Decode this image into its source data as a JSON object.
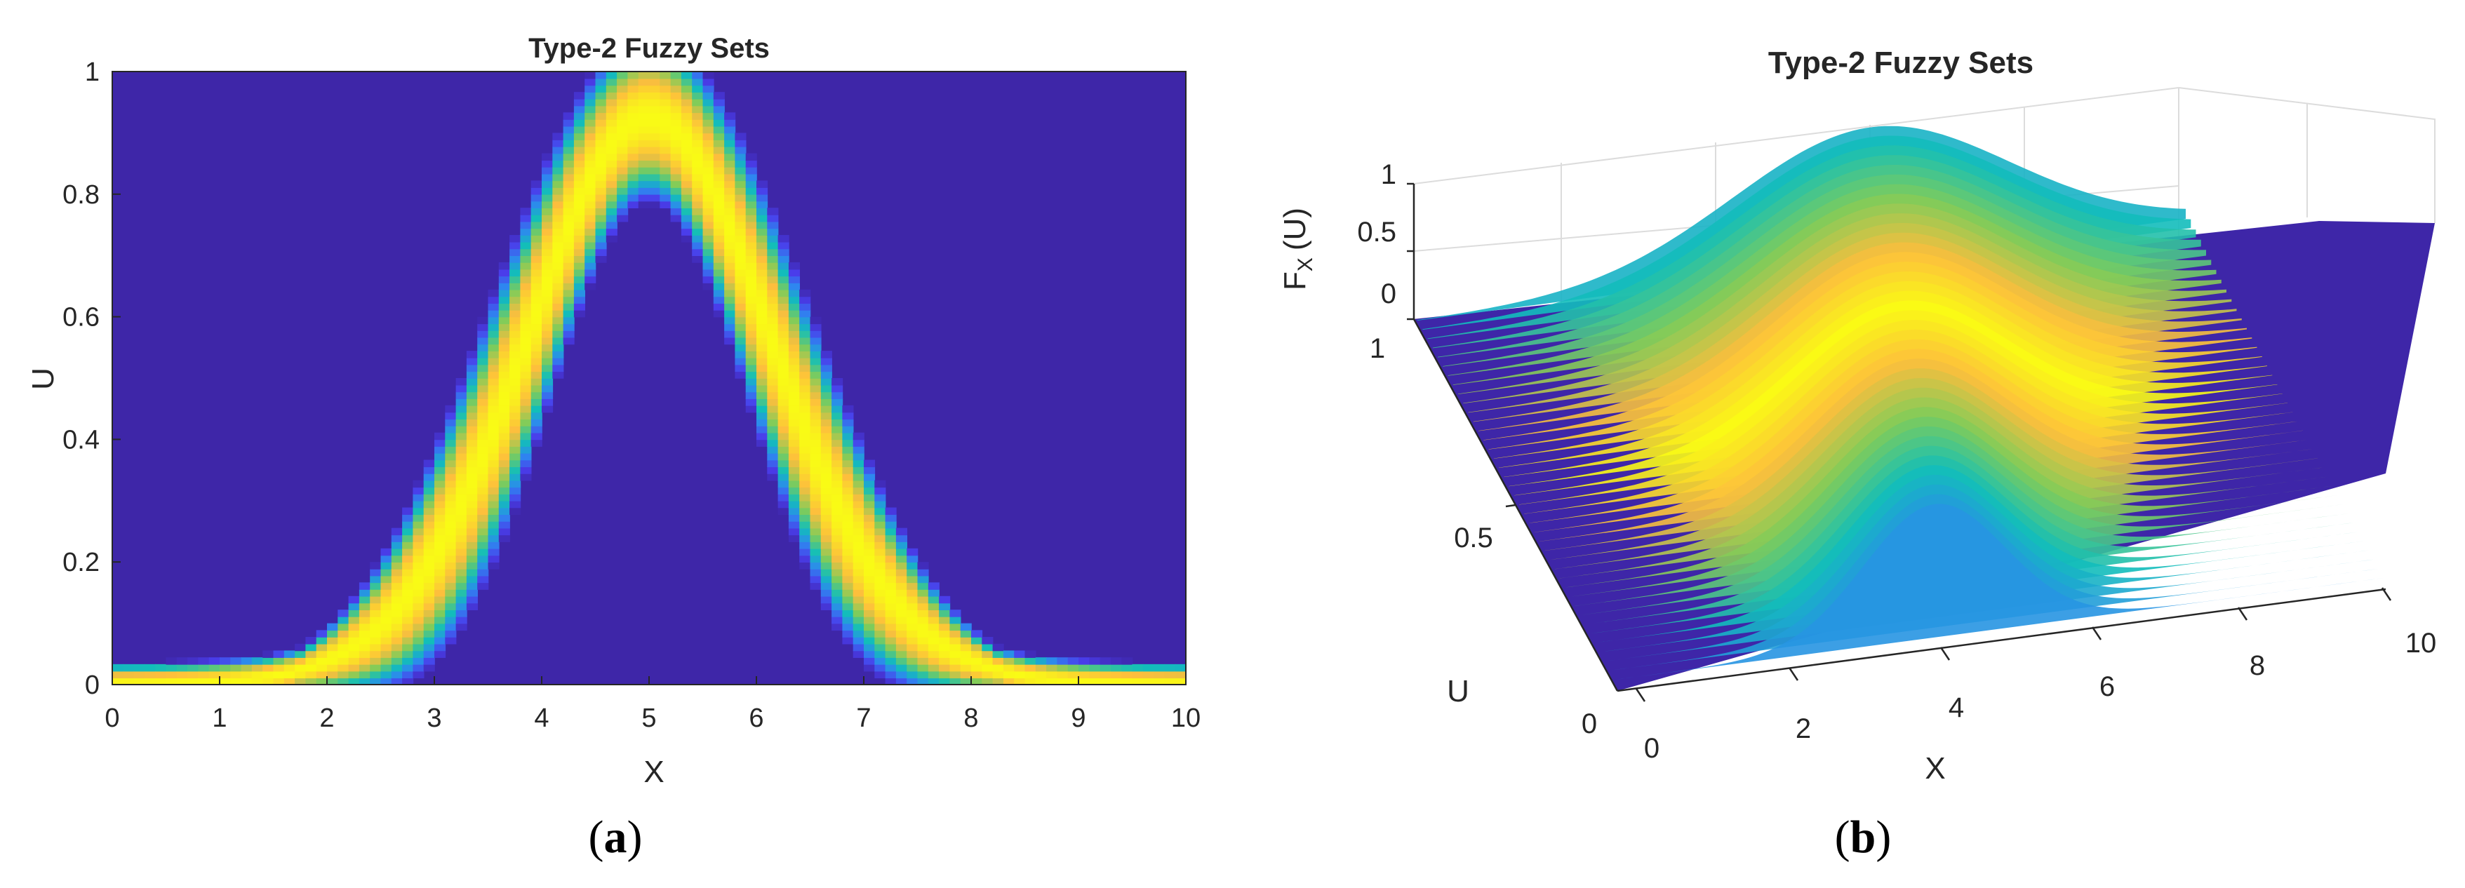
{
  "chart_data": [
    {
      "type": "heatmap",
      "panel_label": "a",
      "title": "Type-2 Fuzzy Sets",
      "xlabel": "X",
      "ylabel": "U",
      "xlim": [
        0,
        10
      ],
      "ylim": [
        0,
        1
      ],
      "xticks": [
        "0",
        "1",
        "2",
        "3",
        "4",
        "5",
        "6",
        "7",
        "8",
        "9",
        "10"
      ],
      "yticks": [
        "0",
        "0.2",
        "0.4",
        "0.6",
        "0.8",
        "1"
      ],
      "colormap": [
        "#3E26A8",
        "#4A3DEB",
        "#2E87F0",
        "#12BEB9",
        "#81CC59",
        "#FDBE3D",
        "#F9FB15"
      ],
      "secondary_membership": {
        "center": 5,
        "upper_sigma": 1.3,
        "lower_sigma": 1.0,
        "upper_height": 1.0,
        "lower_height": 0.85
      }
    },
    {
      "type": "surface",
      "panel_label": "b",
      "title": "Type-2 Fuzzy Sets",
      "xlabel": "X",
      "ylabel": "U",
      "zlabel": "F",
      "zlabel_subscript": "X",
      "zlabel_suffix": "(U)",
      "xlim": [
        0,
        10
      ],
      "ylim": [
        0,
        1
      ],
      "zlim": [
        0,
        1
      ],
      "xticks": [
        "0",
        "2",
        "4",
        "6",
        "8",
        "10"
      ],
      "yticks": [
        "0",
        "0.5",
        "1"
      ],
      "zticks": [
        "0",
        "0.5",
        "1"
      ]
    }
  ],
  "colors": {
    "background_low": "#3E26A8",
    "peak": "#F9FB15",
    "axis": "#262626",
    "grid": "#DCDCDC"
  }
}
